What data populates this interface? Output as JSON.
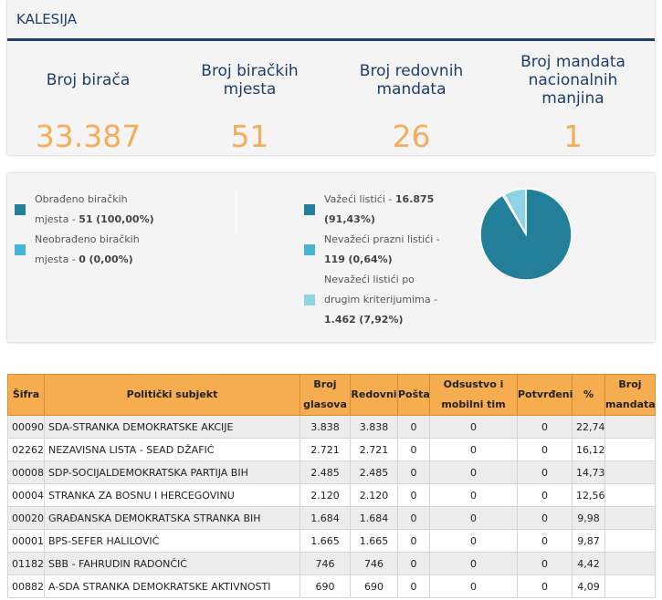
{
  "header": {
    "title": "KALESIJA"
  },
  "stats": [
    {
      "label": "Broj birača",
      "value": "33.387"
    },
    {
      "label": "Broj biračkih mjesta",
      "value": "51"
    },
    {
      "label": "Broj redovnih mandata",
      "value": "26"
    },
    {
      "label": "Broj mandata nacionalnih manjina",
      "value": "1"
    }
  ],
  "pies": [
    {
      "type": "pie",
      "segments": [
        {
          "name": "Obrađeno biračkih mjesta -",
          "count": "51",
          "percent": "(100,00%)",
          "value": 100,
          "color": "#237e99"
        },
        {
          "name": "Neobrađeno biračkih mjesta -",
          "count": "0",
          "percent": "(0,00%)",
          "value": 0,
          "color": "#46b4d4"
        }
      ]
    },
    {
      "type": "pie",
      "segments": [
        {
          "name": "Važeći listići -",
          "count": "16.875",
          "percent": "(91,43%)",
          "value": 91.43,
          "color": "#237e99"
        },
        {
          "name": "Nevažeći prazni listići -",
          "count": "119",
          "percent": "(0,64%)",
          "value": 0.64,
          "color": "#46b4d4"
        },
        {
          "name": "Nevažeći listići po drugim kriterijumima -",
          "count": "1.462",
          "percent": "(7,92%)",
          "value": 7.92,
          "color": "#8fd2e4"
        }
      ]
    }
  ],
  "table": {
    "columns": [
      "Šifra",
      "Politički subjekt",
      "Broj glasova",
      "Redovni",
      "Pošta",
      "Odsustvo i mobilni tim",
      "Potvrđeni",
      "%",
      "Broj mandata"
    ],
    "rows": [
      [
        "00090",
        "SDA-STRANKA DEMOKRATSKE AKCIJE",
        "3.838",
        "3.838",
        "0",
        "0",
        "0",
        "22,74"
      ],
      [
        "02262",
        "NEZAVISNA LISTA - SEAD DŽAFIĆ",
        "2.721",
        "2.721",
        "0",
        "0",
        "0",
        "16,12"
      ],
      [
        "00008",
        "SDP-SOCIJALDEMOKRATSKA PARTIJA BIH",
        "2.485",
        "2.485",
        "0",
        "0",
        "0",
        "14,73"
      ],
      [
        "00004",
        "STRANKA ZA BOSNU I HERCEGOVINU",
        "2.120",
        "2.120",
        "0",
        "0",
        "0",
        "12,56"
      ],
      [
        "00020",
        "GRAĐANSKA DEMOKRATSKA STRANKA BIH",
        "1.684",
        "1.684",
        "0",
        "0",
        "0",
        "9,98"
      ],
      [
        "00001",
        "BPS-SEFER HALILOVIĆ",
        "1.665",
        "1.665",
        "0",
        "0",
        "0",
        "9,87"
      ],
      [
        "01182",
        "SBB - FAHRUDIN RADONČIĆ",
        "746",
        "746",
        "0",
        "0",
        "0",
        "4,42"
      ],
      [
        "00882",
        "A-SDA STRANKA DEMOKRATSKE AKTIVNOSTI",
        "690",
        "690",
        "0",
        "0",
        "0",
        "4,09"
      ]
    ]
  }
}
